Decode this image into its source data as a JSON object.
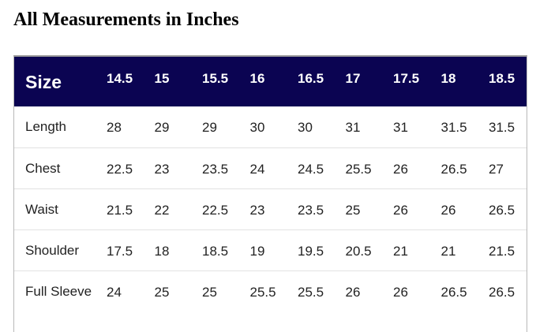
{
  "title": "All Measurements in Inches",
  "table": {
    "header": [
      "Size",
      "14.5",
      "15",
      "15.5",
      "16",
      "16.5",
      "17",
      "17.5",
      "18",
      "18.5"
    ],
    "rows": [
      [
        "Length",
        "28",
        "29",
        "29",
        "30",
        "30",
        "31",
        "31",
        "31.5",
        "31.5"
      ],
      [
        "Chest",
        "22.5",
        "23",
        "23.5",
        "24",
        "24.5",
        "25.5",
        "26",
        "26.5",
        "27"
      ],
      [
        "Waist",
        "21.5",
        "22",
        "22.5",
        "23",
        "23.5",
        "25",
        "26",
        "26",
        "26.5"
      ],
      [
        "Shoulder",
        "17.5",
        "18",
        "18.5",
        "19",
        "19.5",
        "20.5",
        "21",
        "21",
        "21.5"
      ],
      [
        "Full Sleeve",
        "24",
        "25",
        "25",
        "25.5",
        "25.5",
        "26",
        "26",
        "26.5",
        "26.5"
      ]
    ]
  }
}
